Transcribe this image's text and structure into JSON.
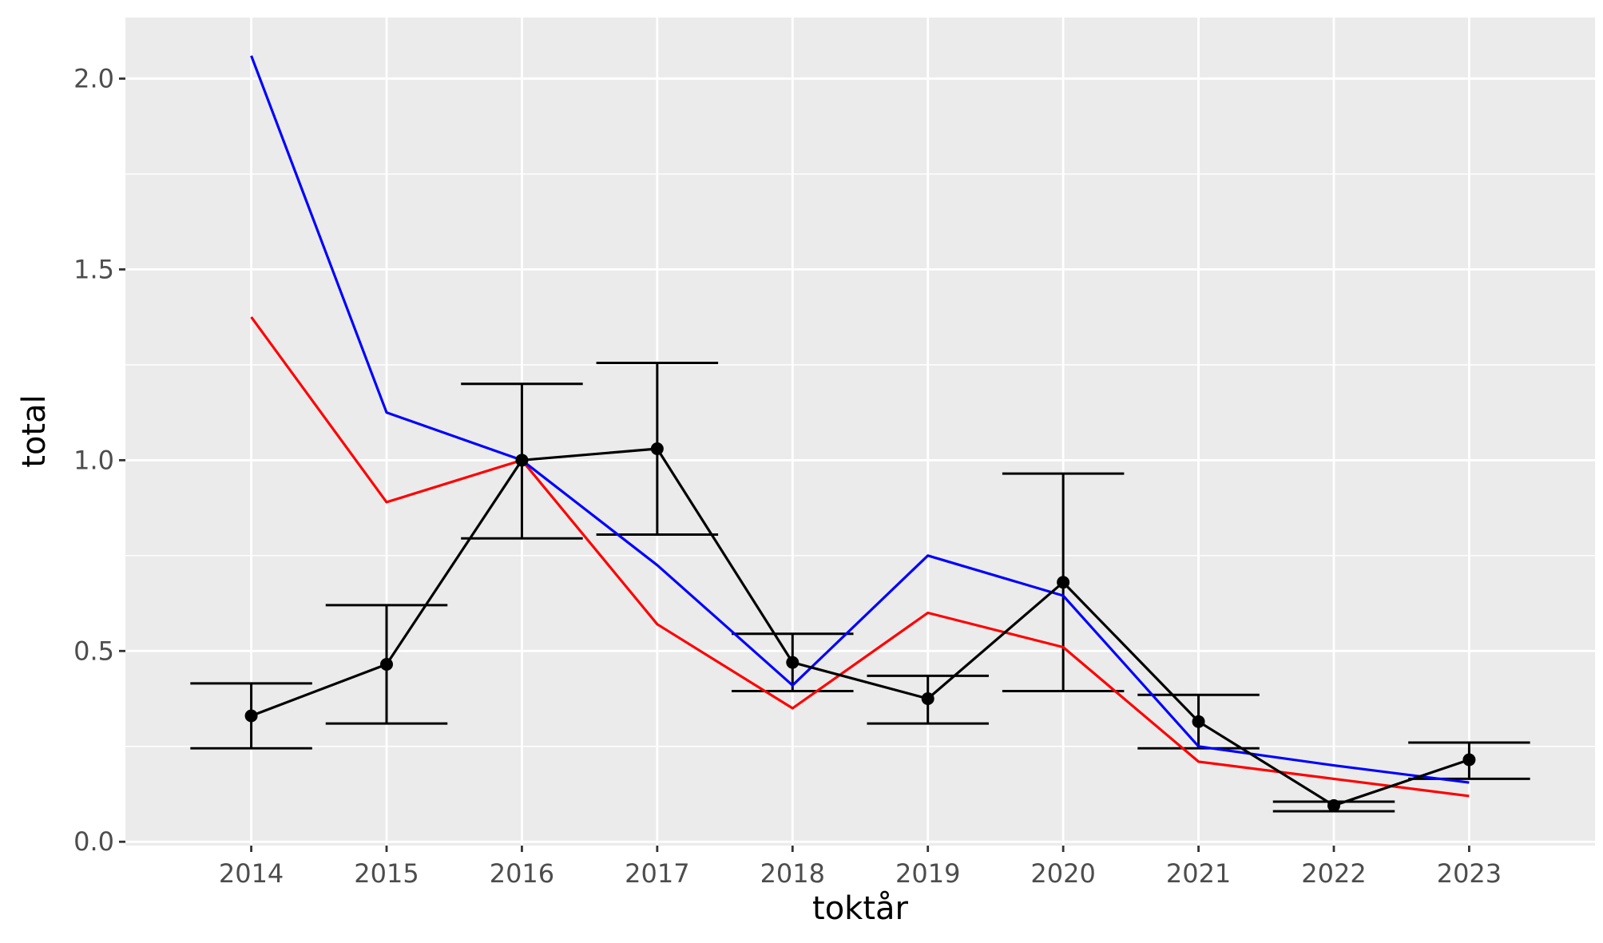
{
  "chart_data": {
    "type": "line",
    "title": "",
    "xlabel": "toktår",
    "ylabel": "total",
    "x": [
      2014,
      2015,
      2016,
      2017,
      2018,
      2019,
      2020,
      2021,
      2022,
      2023
    ],
    "xlim": [
      2013.07,
      2023.93
    ],
    "ylim": [
      -0.01,
      2.16
    ],
    "y_ticks": [
      0.0,
      0.5,
      1.0,
      1.5,
      2.0
    ],
    "y_tick_labels": [
      "0.0",
      "0.5",
      "1.0",
      "1.5",
      "2.0"
    ],
    "grid": true,
    "legend": "none",
    "series": [
      {
        "color": "#000000",
        "points": true,
        "errorbars": true,
        "values": [
          0.33,
          0.465,
          1.0,
          1.03,
          0.47,
          0.375,
          0.68,
          0.315,
          0.095,
          0.215
        ],
        "lower": [
          0.245,
          0.31,
          0.795,
          0.805,
          0.395,
          0.31,
          0.395,
          0.245,
          0.08,
          0.165
        ],
        "upper": [
          0.415,
          0.62,
          1.2,
          1.255,
          0.545,
          0.435,
          0.965,
          0.385,
          0.105,
          0.26
        ]
      },
      {
        "color": "#0000ff",
        "points": false,
        "errorbars": false,
        "values": [
          2.06,
          1.125,
          1.0,
          0.725,
          0.41,
          0.75,
          0.645,
          0.25,
          0.2,
          0.155
        ]
      },
      {
        "color": "#ff0000",
        "points": false,
        "errorbars": false,
        "values": [
          1.375,
          0.89,
          1.0,
          0.57,
          0.35,
          0.6,
          0.51,
          0.21,
          0.165,
          0.12
        ]
      }
    ]
  }
}
